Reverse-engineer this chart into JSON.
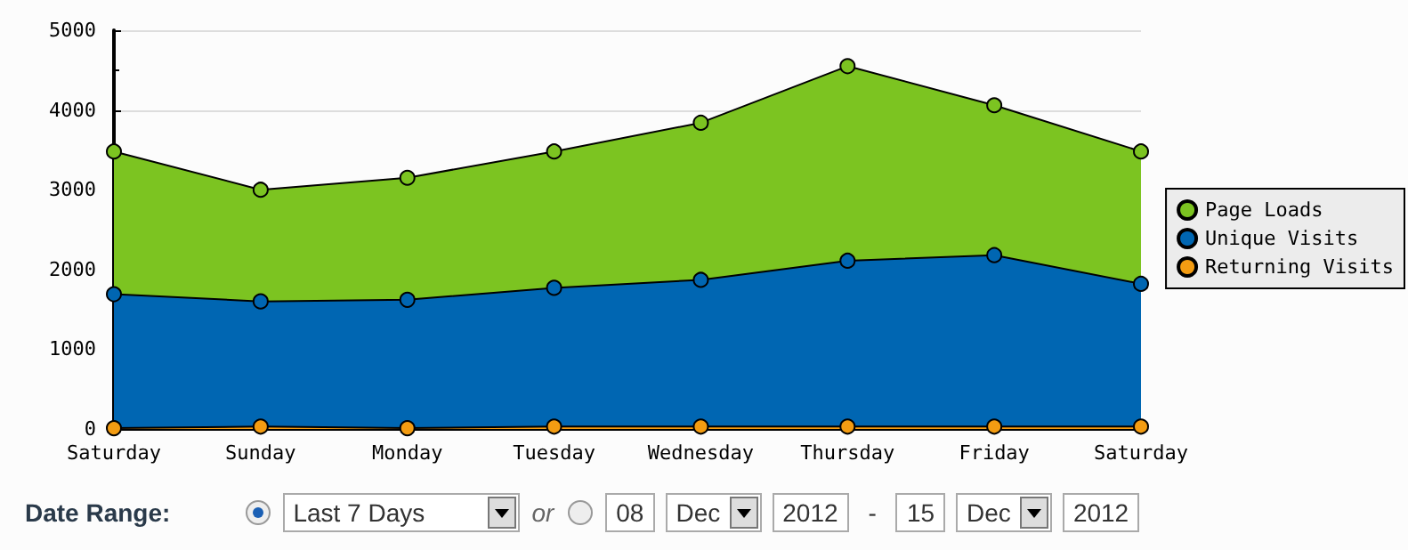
{
  "chart_data": {
    "type": "area",
    "categories": [
      "Saturday",
      "Sunday",
      "Monday",
      "Tuesday",
      "Wednesday",
      "Thursday",
      "Friday",
      "Saturday"
    ],
    "series": [
      {
        "name": "Page Loads",
        "color": "#7cc421",
        "values": [
          3480,
          3000,
          3150,
          3480,
          3840,
          4550,
          4060,
          3480
        ]
      },
      {
        "name": "Unique Visits",
        "color": "#0066b2",
        "values": [
          1690,
          1600,
          1620,
          1770,
          1870,
          2110,
          2180,
          1820
        ]
      },
      {
        "name": "Returning Visits",
        "color": "#f39c12",
        "values": [
          10,
          30,
          10,
          30,
          30,
          30,
          30,
          30
        ]
      }
    ],
    "ylim": [
      0,
      5000
    ],
    "yticks": [
      0,
      1000,
      2000,
      3000,
      4000,
      5000
    ],
    "grid": "y",
    "legend": "right",
    "marker": "circle",
    "line_style": "solid",
    "annotations": [
      "Date Range:",
      "Last 7 Days",
      "or",
      "08",
      "Dec",
      "2012",
      "-",
      "15",
      "Dec",
      "2012"
    ]
  }
}
